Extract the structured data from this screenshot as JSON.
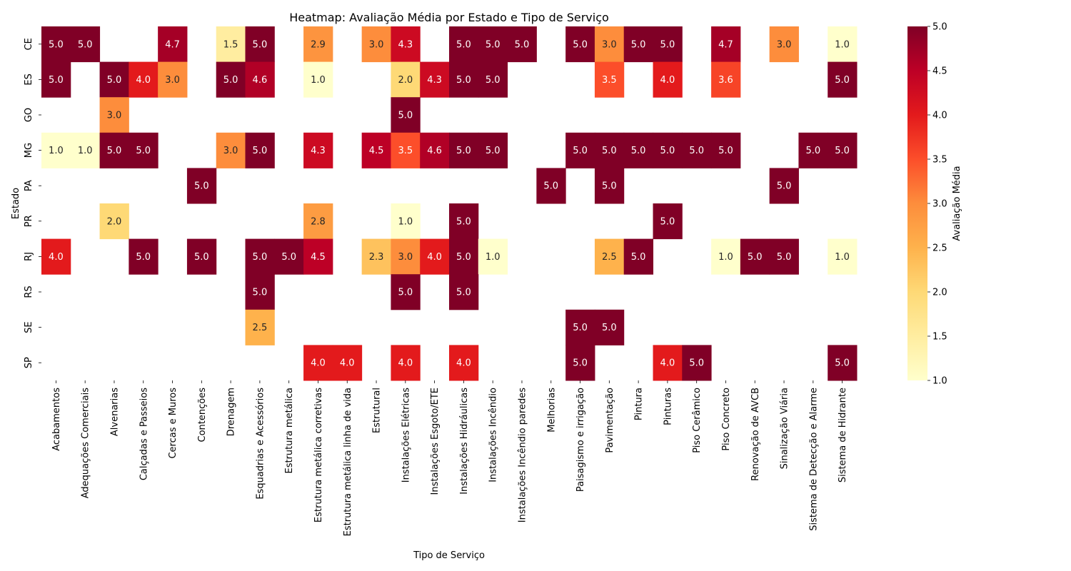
{
  "chart_data": {
    "type": "heatmap",
    "title": "Heatmap: Avaliação Média por Estado e Tipo de Serviço",
    "xlabel": "Tipo de Serviço",
    "ylabel": "Estado",
    "colorbar_label": "Avaliação Média",
    "colormap": "YlOrRd",
    "vmin": 1.0,
    "vmax": 5.0,
    "colorbar_ticks": [
      "1.0",
      "1.5",
      "2.0",
      "2.5",
      "3.0",
      "3.5",
      "4.0",
      "4.5",
      "5.0"
    ],
    "columns": [
      "Acabamentos",
      "Adequações Comerciais",
      "Alvenarias",
      "Calçadas e Passeios",
      "Cercas e Muros",
      "Contenções",
      "Drenagem",
      "Esquadrias e Acessórios",
      "Estrutura metálica",
      "Estrutura metálica corretivas",
      "Estrutura metálica linha de vida",
      "Estrutural",
      "Instalações Elétricas",
      "Instalações Esgoto/ETE",
      "Instalações Hidráulicas",
      "Instalações Incêndio",
      "Instalações Incêndio paredes",
      "Melhorias",
      "Paisagismo e irrigação",
      "Pavimentação",
      "Pintura",
      "Pinturas",
      "Piso Cerâmico",
      "Piso Concreto",
      "Renovação de AVCB",
      "Sinalização Viária",
      "Sistema de Detecção e Alarme",
      "Sistema de Hidrante"
    ],
    "rows": [
      "CE",
      "ES",
      "GO",
      "MG",
      "PA",
      "PR",
      "RJ",
      "RS",
      "SE",
      "SP"
    ],
    "values": [
      [
        5.0,
        5.0,
        null,
        null,
        4.7,
        null,
        1.5,
        5.0,
        null,
        2.9,
        null,
        3.0,
        4.3,
        null,
        5.0,
        5.0,
        5.0,
        null,
        5.0,
        3.0,
        5.0,
        5.0,
        null,
        4.7,
        null,
        3.0,
        null,
        1.0
      ],
      [
        5.0,
        null,
        5.0,
        4.0,
        3.0,
        null,
        5.0,
        4.6,
        null,
        1.0,
        null,
        null,
        2.0,
        4.3,
        5.0,
        5.0,
        null,
        null,
        null,
        3.5,
        null,
        4.0,
        null,
        3.6,
        null,
        null,
        null,
        5.0
      ],
      [
        null,
        null,
        3.0,
        null,
        null,
        null,
        null,
        null,
        null,
        null,
        null,
        null,
        5.0,
        null,
        null,
        null,
        null,
        null,
        null,
        null,
        null,
        null,
        null,
        null,
        null,
        null,
        null,
        null
      ],
      [
        1.0,
        1.0,
        5.0,
        5.0,
        null,
        null,
        3.0,
        5.0,
        null,
        4.3,
        null,
        4.5,
        3.5,
        4.6,
        5.0,
        5.0,
        null,
        null,
        5.0,
        5.0,
        5.0,
        5.0,
        5.0,
        5.0,
        null,
        null,
        5.0,
        5.0
      ],
      [
        null,
        null,
        null,
        null,
        null,
        5.0,
        null,
        null,
        null,
        null,
        null,
        null,
        null,
        null,
        null,
        null,
        null,
        5.0,
        null,
        5.0,
        null,
        null,
        null,
        null,
        null,
        5.0,
        null,
        null
      ],
      [
        null,
        null,
        2.0,
        null,
        null,
        null,
        null,
        null,
        null,
        2.8,
        null,
        null,
        1.0,
        null,
        5.0,
        null,
        null,
        null,
        null,
        null,
        null,
        5.0,
        null,
        null,
        null,
        null,
        null,
        null
      ],
      [
        4.0,
        null,
        null,
        5.0,
        null,
        5.0,
        null,
        5.0,
        5.0,
        4.5,
        null,
        2.3,
        3.0,
        4.0,
        5.0,
        1.0,
        null,
        null,
        null,
        2.5,
        5.0,
        null,
        null,
        1.0,
        5.0,
        5.0,
        null,
        1.0
      ],
      [
        null,
        null,
        null,
        null,
        null,
        null,
        null,
        5.0,
        null,
        null,
        null,
        null,
        5.0,
        null,
        5.0,
        null,
        null,
        null,
        null,
        null,
        null,
        null,
        null,
        null,
        null,
        null,
        null,
        null
      ],
      [
        null,
        null,
        null,
        null,
        null,
        null,
        null,
        2.5,
        null,
        null,
        null,
        null,
        null,
        null,
        null,
        null,
        null,
        null,
        5.0,
        5.0,
        null,
        null,
        null,
        null,
        null,
        null,
        null,
        null
      ],
      [
        null,
        null,
        null,
        null,
        null,
        null,
        null,
        null,
        null,
        4.0,
        4.0,
        null,
        4.0,
        null,
        4.0,
        null,
        null,
        null,
        5.0,
        null,
        null,
        4.0,
        5.0,
        null,
        null,
        null,
        null,
        5.0
      ]
    ]
  }
}
